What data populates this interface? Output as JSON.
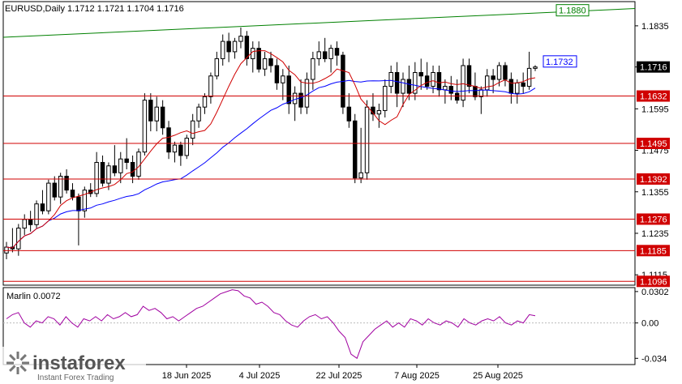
{
  "header": {
    "title": "EURUSD,Daily  1.1712 1.1721 1.1704 1.1716"
  },
  "chart_data": [
    {
      "type": "candlestick",
      "symbol": "EURUSD",
      "timeframe": "Daily",
      "ohlc": {
        "open": 1.1712,
        "high": 1.1721,
        "low": 1.1704,
        "close": 1.1716
      },
      "current_price_label": "1.1716",
      "y_ticks": [
        "1.1835",
        "1.1716",
        "1.1595",
        "1.1475",
        "1.1355",
        "1.1235",
        "1.1115"
      ],
      "ylim": [
        1.1085,
        1.1905
      ],
      "x_ticks": [
        "18 Jun 2025",
        "4 Jul 2025",
        "22 Jul 2025",
        "7 Aug 2025",
        "25 Aug 2025"
      ],
      "horizontal_levels": [
        {
          "value": 1.1632,
          "label": "1.1632",
          "color": "#d00000"
        },
        {
          "value": 1.1495,
          "label": "1.1495",
          "color": "#d00000"
        },
        {
          "value": 1.1392,
          "label": "1.1392",
          "color": "#d00000"
        },
        {
          "value": 1.1276,
          "label": "1.1276",
          "color": "#d00000"
        },
        {
          "value": 1.1185,
          "label": "1.1185",
          "color": "#d00000"
        },
        {
          "value": 1.1096,
          "label": "1.1096",
          "color": "#d00000"
        }
      ],
      "trendline": {
        "label": "1.1880",
        "color": "#008000",
        "start_value": 1.1802,
        "end_value": 1.1885
      },
      "blue_ma_label": "1.1732",
      "colors": {
        "ma_slow": "#0000ff",
        "ma_fast": "#d00000",
        "candle": "#000000"
      },
      "candles": [
        [
          1.1178,
          1.121,
          1.116,
          1.1195
        ],
        [
          1.1195,
          1.125,
          1.118,
          1.119
        ],
        [
          1.119,
          1.1262,
          1.117,
          1.125
        ],
        [
          1.125,
          1.129,
          1.123,
          1.1275
        ],
        [
          1.1275,
          1.13,
          1.124,
          1.126
        ],
        [
          1.126,
          1.133,
          1.125,
          1.132
        ],
        [
          1.132,
          1.136,
          1.129,
          1.13
        ],
        [
          1.13,
          1.139,
          1.129,
          1.138
        ],
        [
          1.138,
          1.14,
          1.133,
          1.134
        ],
        [
          1.134,
          1.141,
          1.132,
          1.14
        ],
        [
          1.14,
          1.142,
          1.135,
          1.136
        ],
        [
          1.136,
          1.138,
          1.133,
          1.134
        ],
        [
          1.134,
          1.135,
          1.12,
          1.13
        ],
        [
          1.13,
          1.137,
          1.128,
          1.136
        ],
        [
          1.136,
          1.138,
          1.134,
          1.135
        ],
        [
          1.135,
          1.147,
          1.134,
          1.144
        ],
        [
          1.144,
          1.146,
          1.137,
          1.138
        ],
        [
          1.138,
          1.144,
          1.136,
          1.143
        ],
        [
          1.143,
          1.149,
          1.14,
          1.141
        ],
        [
          1.141,
          1.147,
          1.138,
          1.145
        ],
        [
          1.145,
          1.151,
          1.142,
          1.144
        ],
        [
          1.144,
          1.146,
          1.138,
          1.14
        ],
        [
          1.14,
          1.148,
          1.139,
          1.147
        ],
        [
          1.147,
          1.164,
          1.146,
          1.162
        ],
        [
          1.162,
          1.164,
          1.153,
          1.156
        ],
        [
          1.156,
          1.163,
          1.153,
          1.16
        ],
        [
          1.16,
          1.162,
          1.152,
          1.154
        ],
        [
          1.154,
          1.156,
          1.145,
          1.147
        ],
        [
          1.147,
          1.15,
          1.144,
          1.149
        ],
        [
          1.149,
          1.15,
          1.143,
          1.146
        ],
        [
          1.146,
          1.152,
          1.145,
          1.151
        ],
        [
          1.151,
          1.158,
          1.149,
          1.156
        ],
        [
          1.156,
          1.161,
          1.154,
          1.16
        ],
        [
          1.16,
          1.164,
          1.158,
          1.163
        ],
        [
          1.163,
          1.17,
          1.161,
          1.169
        ],
        [
          1.169,
          1.176,
          1.168,
          1.174
        ],
        [
          1.174,
          1.181,
          1.172,
          1.179
        ],
        [
          1.179,
          1.1815,
          1.173,
          1.176
        ],
        [
          1.176,
          1.18,
          1.174,
          1.179
        ],
        [
          1.179,
          1.183,
          1.177,
          1.1805
        ],
        [
          1.1805,
          1.182,
          1.172,
          1.174
        ],
        [
          1.174,
          1.179,
          1.17,
          1.177
        ],
        [
          1.177,
          1.179,
          1.17,
          1.171
        ],
        [
          1.171,
          1.176,
          1.169,
          1.174
        ],
        [
          1.174,
          1.176,
          1.17,
          1.172
        ],
        [
          1.172,
          1.174,
          1.165,
          1.167
        ],
        [
          1.167,
          1.171,
          1.162,
          1.169
        ],
        [
          1.169,
          1.172,
          1.158,
          1.161
        ],
        [
          1.161,
          1.166,
          1.156,
          1.164
        ],
        [
          1.164,
          1.168,
          1.158,
          1.16
        ],
        [
          1.16,
          1.17,
          1.158,
          1.168
        ],
        [
          1.168,
          1.176,
          1.165,
          1.174
        ],
        [
          1.174,
          1.179,
          1.172,
          1.176
        ],
        [
          1.176,
          1.18,
          1.173,
          1.174
        ],
        [
          1.174,
          1.178,
          1.17,
          1.177
        ],
        [
          1.177,
          1.179,
          1.172,
          1.175
        ],
        [
          1.175,
          1.176,
          1.158,
          1.16
        ],
        [
          1.16,
          1.164,
          1.154,
          1.156
        ],
        [
          1.156,
          1.158,
          1.138,
          1.1395
        ],
        [
          1.1395,
          1.154,
          1.138,
          1.141
        ],
        [
          1.141,
          1.162,
          1.139,
          1.16
        ],
        [
          1.16,
          1.164,
          1.156,
          1.158
        ],
        [
          1.158,
          1.161,
          1.154,
          1.159
        ],
        [
          1.159,
          1.168,
          1.157,
          1.166
        ],
        [
          1.166,
          1.172,
          1.164,
          1.17
        ],
        [
          1.17,
          1.173,
          1.16,
          1.164
        ],
        [
          1.164,
          1.17,
          1.16,
          1.168
        ],
        [
          1.168,
          1.172,
          1.162,
          1.164
        ],
        [
          1.164,
          1.173,
          1.162,
          1.17
        ],
        [
          1.17,
          1.174,
          1.165,
          1.169
        ],
        [
          1.169,
          1.173,
          1.165,
          1.166
        ],
        [
          1.166,
          1.172,
          1.164,
          1.17
        ],
        [
          1.17,
          1.172,
          1.163,
          1.165
        ],
        [
          1.165,
          1.168,
          1.161,
          1.166
        ],
        [
          1.166,
          1.169,
          1.162,
          1.164
        ],
        [
          1.164,
          1.168,
          1.161,
          1.162
        ],
        [
          1.162,
          1.174,
          1.16,
          1.172
        ],
        [
          1.172,
          1.174,
          1.164,
          1.166
        ],
        [
          1.166,
          1.17,
          1.162,
          1.163
        ],
        [
          1.163,
          1.166,
          1.158,
          1.165
        ],
        [
          1.165,
          1.171,
          1.163,
          1.169
        ],
        [
          1.169,
          1.171,
          1.164,
          1.168
        ],
        [
          1.168,
          1.173,
          1.166,
          1.172
        ],
        [
          1.172,
          1.173,
          1.166,
          1.168
        ],
        [
          1.168,
          1.17,
          1.161,
          1.164
        ],
        [
          1.164,
          1.168,
          1.161,
          1.167
        ],
        [
          1.167,
          1.17,
          1.164,
          1.166
        ],
        [
          1.166,
          1.176,
          1.165,
          1.1712
        ],
        [
          1.1712,
          1.1721,
          1.1704,
          1.1716
        ]
      ]
    },
    {
      "type": "line",
      "title": "Marlin 0.0072",
      "y_ticks": [
        "0.0302",
        "0.00",
        "-0.034"
      ],
      "ylim": [
        -0.04,
        0.034
      ],
      "values": [
        0.004,
        0.008,
        0.01,
        0.0,
        -0.004,
        0.002,
        0.0,
        0.006,
        0.004,
        -0.002,
        0.006,
        0.0,
        -0.004,
        0.004,
        0.002,
        0.006,
        0.002,
        0.008,
        0.004,
        0.006,
        0.01,
        0.006,
        0.008,
        0.016,
        0.012,
        0.014,
        0.01,
        0.004,
        0.006,
        0.002,
        0.006,
        0.01,
        0.014,
        0.016,
        0.02,
        0.024,
        0.028,
        0.03,
        0.032,
        0.031,
        0.026,
        0.024,
        0.018,
        0.02,
        0.016,
        0.01,
        0.008,
        0.002,
        -0.002,
        -0.004,
        0.002,
        0.006,
        0.008,
        0.004,
        0.006,
        0.0,
        -0.008,
        -0.014,
        -0.03,
        -0.034,
        -0.018,
        -0.012,
        -0.006,
        -0.002,
        0.002,
        -0.004,
        0.0,
        -0.004,
        0.004,
        0.002,
        -0.002,
        0.004,
        0.0,
        -0.002,
        0.002,
        0.0,
        -0.004,
        0.004,
        0.0,
        -0.002,
        0.002,
        0.004,
        0.002,
        0.006,
        0.0,
        -0.002,
        0.002,
        0.0,
        0.008,
        0.007
      ]
    }
  ],
  "watermark": {
    "brand": "instaforex",
    "tagline": "Instant Forex Trading"
  }
}
